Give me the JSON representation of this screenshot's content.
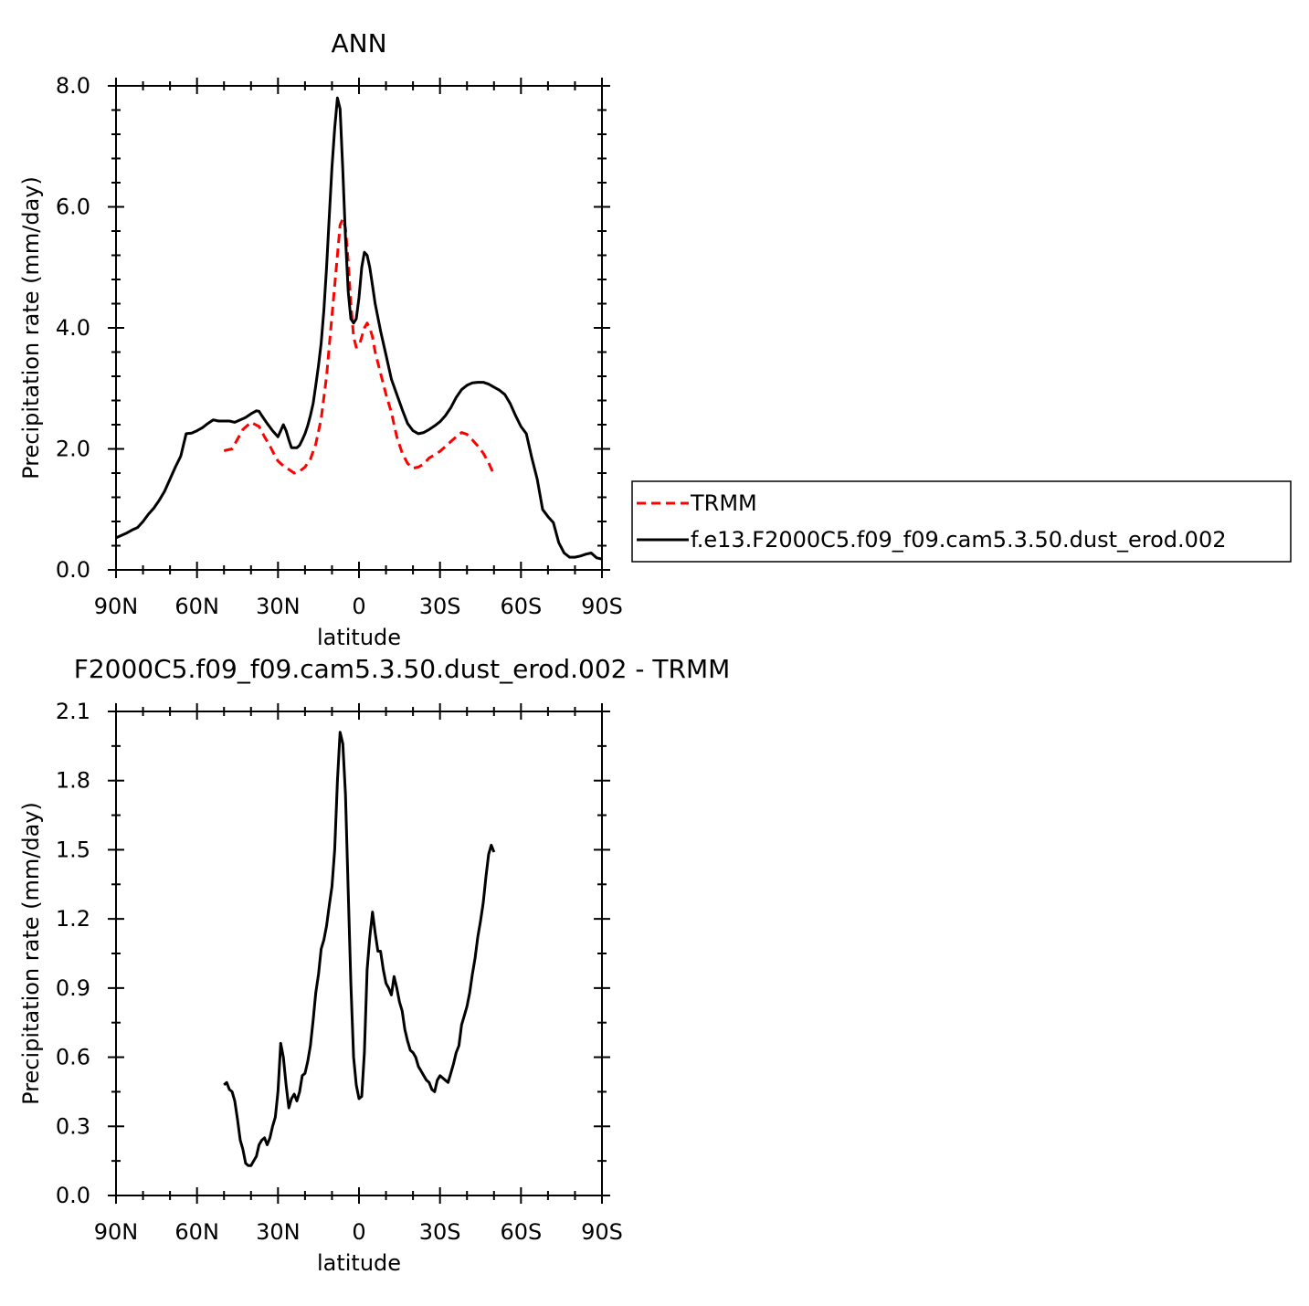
{
  "chart_data": [
    {
      "type": "line",
      "title": "ANN",
      "xlabel": "latitude",
      "ylabel": "Precipitation rate (mm/day)",
      "xlim": [
        90,
        -90
      ],
      "ylim": [
        0.0,
        8.0
      ],
      "x_ticks": [
        {
          "value": 90,
          "label": "90N"
        },
        {
          "value": 60,
          "label": "60N"
        },
        {
          "value": 30,
          "label": "30N"
        },
        {
          "value": 0,
          "label": "0"
        },
        {
          "value": -30,
          "label": "30S"
        },
        {
          "value": -60,
          "label": "60S"
        },
        {
          "value": -90,
          "label": "90S"
        }
      ],
      "y_ticks": [
        {
          "value": 0.0,
          "label": "0.0"
        },
        {
          "value": 2.0,
          "label": "2.0"
        },
        {
          "value": 4.0,
          "label": "4.0"
        },
        {
          "value": 6.0,
          "label": "6.0"
        },
        {
          "value": 8.0,
          "label": "8.0"
        }
      ],
      "legend": {
        "placement": "right"
      },
      "series": [
        {
          "name": "TRMM",
          "color": "#ff0000",
          "dash": "dashed",
          "x": [
            50,
            47,
            45,
            43,
            40,
            37,
            35,
            33,
            31,
            30,
            28,
            26,
            24,
            22,
            20,
            18,
            16,
            14,
            12,
            10,
            8,
            7,
            6,
            5,
            4,
            3,
            2,
            1,
            0,
            -1,
            -2,
            -3,
            -4,
            -5,
            -6,
            -8,
            -10,
            -12,
            -14,
            -16,
            -18,
            -20,
            -22,
            -24,
            -26,
            -28,
            -30,
            -32,
            -34,
            -36,
            -38,
            -40,
            -42,
            -44,
            -46,
            -48,
            -50
          ],
          "y": [
            1.97,
            2.0,
            2.16,
            2.32,
            2.44,
            2.37,
            2.2,
            2.05,
            1.87,
            1.8,
            1.72,
            1.66,
            1.6,
            1.63,
            1.7,
            1.83,
            2.08,
            2.5,
            3.2,
            4.2,
            5.2,
            5.7,
            5.8,
            5.65,
            5.1,
            4.4,
            3.85,
            3.68,
            3.7,
            3.85,
            4.0,
            4.08,
            4.0,
            3.85,
            3.6,
            3.25,
            2.9,
            2.6,
            2.2,
            1.93,
            1.76,
            1.68,
            1.7,
            1.75,
            1.85,
            1.9,
            1.96,
            2.04,
            2.12,
            2.2,
            2.27,
            2.24,
            2.15,
            2.05,
            1.93,
            1.77,
            1.57
          ]
        },
        {
          "name": "f.e13.F2000C5.f09_f09.cam5.3.50.dust_erod.002",
          "color": "#000000",
          "dash": "solid",
          "x": [
            90,
            88,
            86,
            84,
            82,
            80,
            78,
            76,
            74,
            72,
            70,
            68,
            66,
            64,
            62,
            60,
            58,
            56,
            54,
            52,
            50,
            48,
            46,
            44,
            42,
            40,
            38,
            37,
            36,
            34,
            32,
            30,
            29,
            28,
            27,
            26,
            25,
            24,
            23,
            22,
            21,
            20,
            19,
            18,
            17,
            16,
            15,
            14,
            13,
            12,
            11,
            10,
            9,
            8,
            7,
            6,
            5,
            4,
            3,
            2,
            1,
            0,
            -1,
            -2,
            -3,
            -4,
            -5,
            -6,
            -8,
            -10,
            -12,
            -14,
            -16,
            -18,
            -20,
            -22,
            -24,
            -26,
            -28,
            -30,
            -32,
            -34,
            -36,
            -38,
            -40,
            -42,
            -44,
            -46,
            -48,
            -50,
            -52,
            -54,
            -56,
            -58,
            -60,
            -62,
            -64,
            -66,
            -68,
            -70,
            -72,
            -74,
            -76,
            -78,
            -80,
            -82,
            -84,
            -86,
            -88,
            -90
          ],
          "y": [
            0.53,
            0.57,
            0.61,
            0.66,
            0.7,
            0.8,
            0.92,
            1.02,
            1.15,
            1.3,
            1.5,
            1.7,
            1.88,
            2.25,
            2.26,
            2.3,
            2.35,
            2.42,
            2.48,
            2.46,
            2.46,
            2.46,
            2.44,
            2.48,
            2.52,
            2.58,
            2.63,
            2.62,
            2.55,
            2.42,
            2.3,
            2.2,
            2.3,
            2.4,
            2.3,
            2.15,
            2.02,
            2.02,
            2.02,
            2.06,
            2.15,
            2.25,
            2.38,
            2.55,
            2.75,
            3.05,
            3.38,
            3.75,
            4.3,
            5.0,
            5.85,
            6.65,
            7.3,
            7.8,
            7.62,
            6.6,
            5.5,
            4.6,
            4.15,
            4.08,
            4.15,
            4.5,
            5.0,
            5.25,
            5.2,
            5.0,
            4.7,
            4.4,
            3.95,
            3.55,
            3.15,
            2.9,
            2.65,
            2.42,
            2.3,
            2.25,
            2.27,
            2.32,
            2.38,
            2.45,
            2.55,
            2.68,
            2.85,
            2.98,
            3.05,
            3.09,
            3.1,
            3.1,
            3.07,
            3.02,
            2.97,
            2.9,
            2.75,
            2.55,
            2.37,
            2.25,
            1.85,
            1.5,
            1.0,
            0.88,
            0.78,
            0.45,
            0.28,
            0.21,
            0.21,
            0.23,
            0.26,
            0.28,
            0.2,
            0.18
          ]
        }
      ]
    },
    {
      "type": "line",
      "title": "F2000C5.f09_f09.cam5.3.50.dust_erod.002 - TRMM",
      "xlabel": "latitude",
      "ylabel": "Precipitation rate (mm/day)",
      "xlim": [
        90,
        -90
      ],
      "ylim": [
        0.0,
        2.1
      ],
      "x_ticks": [
        {
          "value": 90,
          "label": "90N"
        },
        {
          "value": 60,
          "label": "60N"
        },
        {
          "value": 30,
          "label": "30N"
        },
        {
          "value": 0,
          "label": "0"
        },
        {
          "value": -30,
          "label": "30S"
        },
        {
          "value": -60,
          "label": "60S"
        },
        {
          "value": -90,
          "label": "90S"
        }
      ],
      "y_ticks": [
        {
          "value": 0.0,
          "label": "0.0"
        },
        {
          "value": 0.3,
          "label": "0.3"
        },
        {
          "value": 0.6,
          "label": "0.6"
        },
        {
          "value": 0.9,
          "label": "0.9"
        },
        {
          "value": 1.2,
          "label": "1.2"
        },
        {
          "value": 1.5,
          "label": "1.5"
        },
        {
          "value": 1.8,
          "label": "1.8"
        },
        {
          "value": 2.1,
          "label": "2.1"
        }
      ],
      "series": [
        {
          "color": "#000000",
          "dash": "solid",
          "x": [
            50,
            49,
            48,
            47,
            46,
            45,
            44,
            43,
            42,
            41,
            40,
            39,
            38,
            37,
            36,
            35,
            34,
            33,
            32,
            31,
            30,
            29,
            28,
            27,
            26,
            25,
            24,
            23,
            22,
            21,
            20,
            19,
            18,
            17,
            16,
            15,
            14,
            13,
            12,
            11,
            10,
            9,
            8,
            7,
            6,
            5,
            4,
            3,
            2,
            1,
            0,
            -1,
            -2,
            -3,
            -4,
            -5,
            -6,
            -7,
            -8,
            -9,
            -10,
            -11,
            -12,
            -13,
            -14,
            -15,
            -16,
            -17,
            -18,
            -19,
            -20,
            -21,
            -22,
            -23,
            -24,
            -25,
            -26,
            -27,
            -28,
            -29,
            -30,
            -31,
            -32,
            -33,
            -34,
            -35,
            -36,
            -37,
            -38,
            -39,
            -40,
            -41,
            -42,
            -43,
            -44,
            -45,
            -46,
            -47,
            -48,
            -49,
            -50
          ],
          "y": [
            0.48,
            0.49,
            0.46,
            0.45,
            0.41,
            0.33,
            0.24,
            0.2,
            0.14,
            0.13,
            0.13,
            0.15,
            0.17,
            0.22,
            0.24,
            0.25,
            0.22,
            0.25,
            0.3,
            0.34,
            0.45,
            0.66,
            0.6,
            0.48,
            0.38,
            0.42,
            0.44,
            0.41,
            0.45,
            0.52,
            0.53,
            0.58,
            0.65,
            0.76,
            0.88,
            0.96,
            1.07,
            1.11,
            1.17,
            1.26,
            1.34,
            1.5,
            1.8,
            2.01,
            1.96,
            1.74,
            1.32,
            0.92,
            0.6,
            0.48,
            0.42,
            0.43,
            0.62,
            0.98,
            1.12,
            1.23,
            1.14,
            1.06,
            1.06,
            0.98,
            0.92,
            0.9,
            0.87,
            0.95,
            0.9,
            0.84,
            0.8,
            0.72,
            0.67,
            0.63,
            0.62,
            0.6,
            0.56,
            0.54,
            0.52,
            0.5,
            0.49,
            0.46,
            0.45,
            0.5,
            0.52,
            0.51,
            0.5,
            0.49,
            0.53,
            0.57,
            0.62,
            0.65,
            0.74,
            0.78,
            0.82,
            0.88,
            0.96,
            1.03,
            1.12,
            1.19,
            1.27,
            1.38,
            1.48,
            1.52,
            1.49
          ]
        }
      ]
    }
  ]
}
